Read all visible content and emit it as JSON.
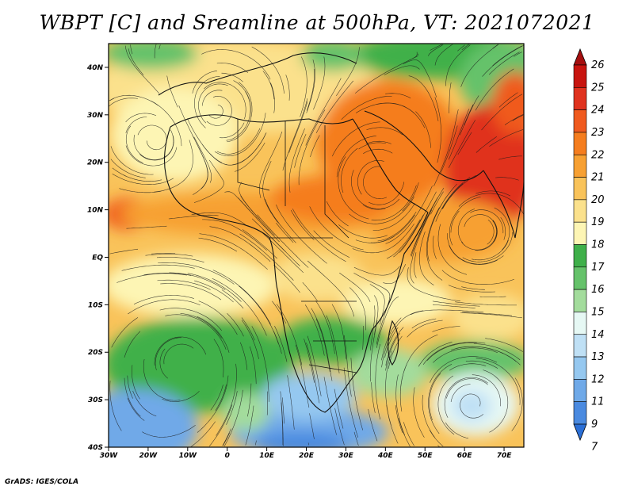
{
  "title": "WBPT [C] and Sreamline at 500hPa, VT: 2021072021",
  "credit": "GrADS: IGES/COLA",
  "map": {
    "lon_range": [
      -30,
      75
    ],
    "lat_range": [
      -40,
      45
    ],
    "lat_ticks": [
      {
        "value": 40,
        "label": "40N"
      },
      {
        "value": 30,
        "label": "30N"
      },
      {
        "value": 20,
        "label": "20N"
      },
      {
        "value": 10,
        "label": "10N"
      },
      {
        "value": 0,
        "label": "EQ"
      },
      {
        "value": -10,
        "label": "10S"
      },
      {
        "value": -20,
        "label": "20S"
      },
      {
        "value": -30,
        "label": "30S"
      },
      {
        "value": -40,
        "label": "40S"
      }
    ],
    "lon_ticks": [
      {
        "value": -30,
        "label": "30W"
      },
      {
        "value": -20,
        "label": "20W"
      },
      {
        "value": -10,
        "label": "10W"
      },
      {
        "value": 0,
        "label": "0"
      },
      {
        "value": 10,
        "label": "10E"
      },
      {
        "value": 20,
        "label": "20E"
      },
      {
        "value": 30,
        "label": "30E"
      },
      {
        "value": 40,
        "label": "40E"
      },
      {
        "value": 50,
        "label": "50E"
      },
      {
        "value": 60,
        "label": "60E"
      },
      {
        "value": 70,
        "label": "70E"
      }
    ]
  },
  "colorbar": {
    "labels": [
      "26",
      "25",
      "24",
      "23",
      "22",
      "21",
      "20",
      "19",
      "18",
      "17",
      "16",
      "15",
      "14",
      "13",
      "12",
      "11",
      "9",
      "7"
    ],
    "colors": [
      "#a50f0f",
      "#c8140f",
      "#e0321e",
      "#f05a1e",
      "#f57d1e",
      "#f7a032",
      "#f9c35a",
      "#fbe18c",
      "#fdf5b4",
      "#3fb04a",
      "#65c26a",
      "#a3dc9c",
      "#e6f8f4",
      "#bfe0f5",
      "#95c8f0",
      "#6fa9e8",
      "#4a8ae0",
      "#2b6fd6"
    ]
  },
  "legend_entries": [
    {
      "value": 26,
      "color": "#a50f0f"
    },
    {
      "value": 7,
      "color": "#2b6fd6"
    }
  ]
}
